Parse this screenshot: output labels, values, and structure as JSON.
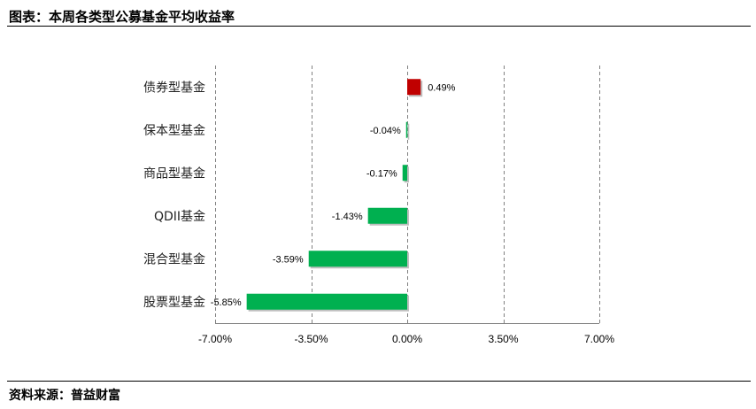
{
  "header": {
    "title": "图表：本周各类型公募基金平均收益率"
  },
  "footer": {
    "source": "资料来源：普益财富"
  },
  "colors": {
    "positive": "#c00000",
    "negative": "#00b050",
    "grid": "#808080"
  },
  "chart_data": {
    "type": "bar",
    "orientation": "horizontal",
    "categories": [
      "债券型基金",
      "保本型基金",
      "商品型基金",
      "QDII基金",
      "混合型基金",
      "股票型基金"
    ],
    "values": [
      0.49,
      -0.04,
      -0.17,
      -1.43,
      -3.59,
      -5.85
    ],
    "value_labels": [
      "0.49%",
      "-0.04%",
      "-0.17%",
      "-1.43%",
      "-3.59%",
      "-5.85%"
    ],
    "xlim": [
      -7.0,
      7.0
    ],
    "x_ticks": [
      -7.0,
      -3.5,
      0.0,
      3.5,
      7.0
    ],
    "x_tick_labels": [
      "-7.00%",
      "-3.50%",
      "0.00%",
      "3.50%",
      "7.00%"
    ],
    "grid": "vertical dashed"
  }
}
